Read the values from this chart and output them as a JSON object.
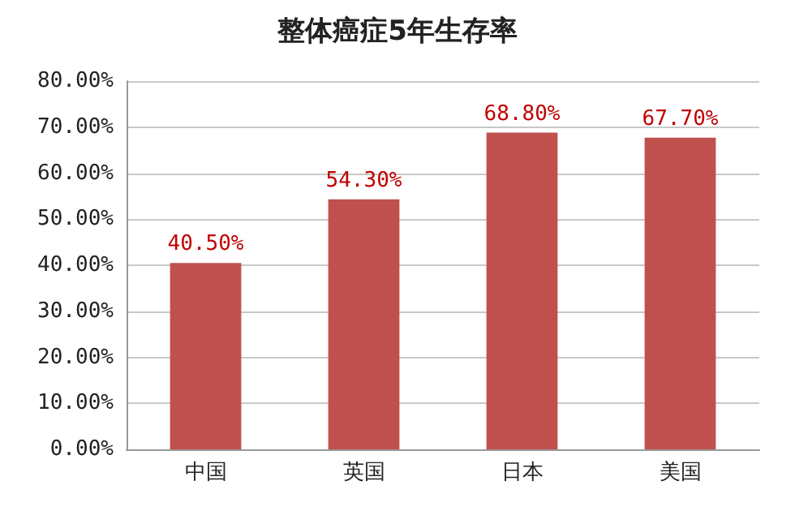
{
  "chart_data": {
    "type": "bar",
    "title": "整体癌症5年生存率",
    "categories": [
      "中国",
      "英国",
      "日本",
      "美国"
    ],
    "values": [
      40.5,
      54.3,
      68.8,
      67.7
    ],
    "value_labels": [
      "40.50%",
      "54.30%",
      "68.80%",
      "67.70%"
    ],
    "color": "#c0504d",
    "ylim": [
      0,
      80
    ],
    "yticks": [
      {
        "value": 0,
        "label": "0.00%"
      },
      {
        "value": 10,
        "label": "10.00%"
      },
      {
        "value": 20,
        "label": "20.00%"
      },
      {
        "value": 30,
        "label": "30.00%"
      },
      {
        "value": 40,
        "label": "40.00%"
      },
      {
        "value": 50,
        "label": "50.00%"
      },
      {
        "value": 60,
        "label": "60.00%"
      },
      {
        "value": 70,
        "label": "70.00%"
      },
      {
        "value": 80,
        "label": "80.00%"
      }
    ],
    "grid": "y"
  }
}
